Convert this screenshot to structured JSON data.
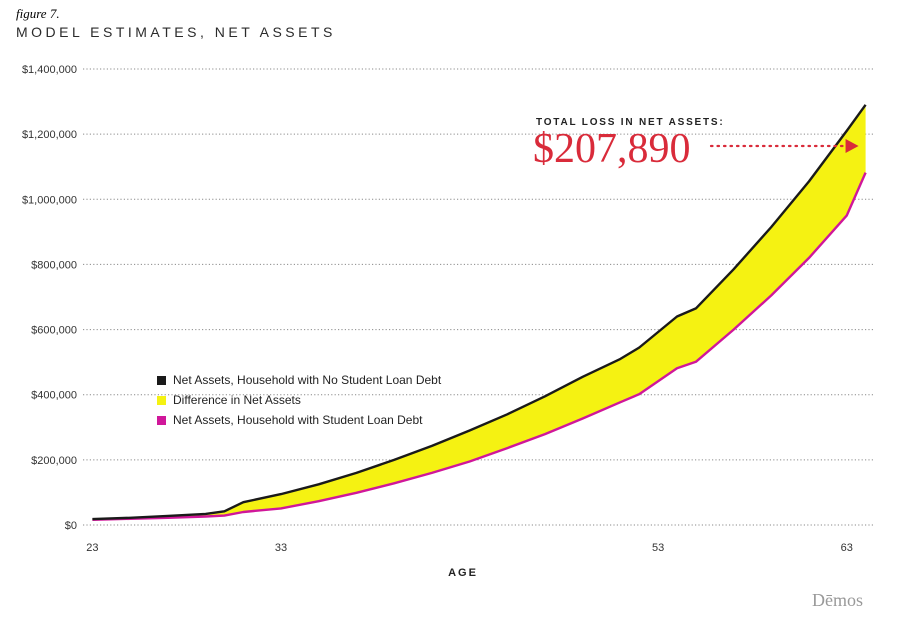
{
  "header": {
    "figure_label": "figure 7.",
    "title": "MODEL ESTIMATES, NET ASSETS"
  },
  "colors": {
    "accent_red": "#d92b3a",
    "no_debt_line": "#1a1a1a",
    "difference_fill": "#f5f212",
    "debt_line": "#d0179a",
    "grid": "#8a8a8a"
  },
  "callout": {
    "label": "TOTAL LOSS IN NET ASSETS:",
    "value": "$207,890"
  },
  "brand": "Dēmos",
  "chart_data": {
    "type": "area",
    "title": "MODEL ESTIMATES, NET ASSETS",
    "xlabel": "AGE",
    "ylabel": "",
    "xlim": [
      22.5,
      64.5
    ],
    "ylim": [
      0,
      1400000
    ],
    "x_ticks": [
      23,
      33,
      53,
      63
    ],
    "y_ticks": [
      {
        "value": 0,
        "label": "$0"
      },
      {
        "value": 200000,
        "label": "$200,000"
      },
      {
        "value": 400000,
        "label": "$400,000"
      },
      {
        "value": 600000,
        "label": "$600,000"
      },
      {
        "value": 800000,
        "label": "$800,000"
      },
      {
        "value": 1000000,
        "label": "$1,000,000"
      },
      {
        "value": 1200000,
        "label": "$1,200,000"
      },
      {
        "value": 1400000,
        "label": "$1,400,000"
      }
    ],
    "grid": true,
    "legend_position": "center-left",
    "legend": [
      {
        "label": "Net Assets, Household with No Student Loan Debt",
        "color": "#1a1a1a"
      },
      {
        "label": "Difference in Net Assets",
        "color": "#f5f212"
      },
      {
        "label": "Net Assets, Household with Student Loan Debt",
        "color": "#d0179a"
      }
    ],
    "x": [
      23,
      25,
      27,
      28,
      29,
      30,
      31,
      33,
      35,
      37,
      39,
      41,
      43,
      45,
      47,
      49,
      51,
      52,
      54,
      55,
      57,
      59,
      61,
      63,
      64
    ],
    "series": [
      {
        "name": "Net Assets, Household with No Student Loan Debt",
        "values": [
          18000,
          22000,
          28000,
          31000,
          34000,
          42000,
          70000,
          95000,
          125000,
          160000,
          200000,
          243000,
          290000,
          340000,
          395000,
          455000,
          510000,
          545000,
          640000,
          665000,
          785000,
          915000,
          1055000,
          1210000,
          1290000
        ]
      },
      {
        "name": "Net Assets, Household with Student Loan Debt",
        "values": [
          16000,
          19000,
          22000,
          24000,
          26000,
          29000,
          40000,
          51000,
          73000,
          99000,
          128000,
          160000,
          195000,
          236000,
          279000,
          327000,
          377000,
          402000,
          481000,
          501000,
          600000,
          705000,
          820000,
          950000,
          1082000
        ]
      }
    ],
    "annotation": {
      "text": "TOTAL LOSS IN NET ASSETS:",
      "value": "$207,890",
      "at_x": 64
    }
  }
}
